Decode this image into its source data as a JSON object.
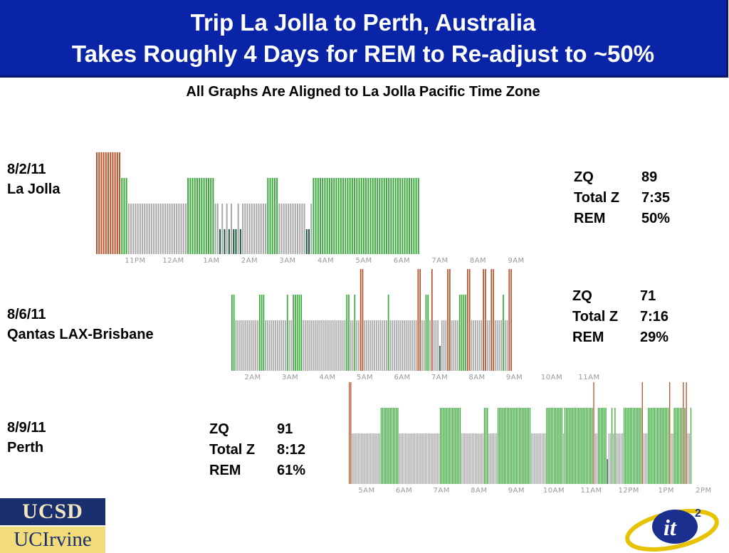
{
  "header": {
    "title_line1": "Trip La Jolla to Perth, Australia",
    "title_line2": "Takes Roughly 4 Days for REM to Re-adjust to ~50%"
  },
  "subtitle": "All Graphs Are Aligned to La Jolla Pacific Time Zone",
  "colors": {
    "wake": "#b5532b",
    "rem": "#3aa83a",
    "light": "#a8a8a8",
    "deep": "#17593a",
    "banner": "#0a24a8"
  },
  "nights": [
    {
      "date": "8/2/11",
      "place": "La Jolla",
      "stats": {
        "zq_label": "ZQ",
        "zq": "89",
        "total_label": "Total Z",
        "total": "7:35",
        "rem_label": "REM",
        "rem": "50%"
      },
      "ticks": [
        "11PM",
        "12AM",
        "1AM",
        "2AM",
        "3AM",
        "4AM",
        "5AM",
        "6AM",
        "7AM",
        "8AM",
        "9AM"
      ],
      "stages": "WWWWWWWWWWWRRRLLLLLLLLLLLLLLLLLLLLLLLLLLRRRRRRRRRRRRLLDLDLDLDDLDLLLLLLLLLLLRRRRRLLLLLLLLLLLLDDLRRRRRRRRRRRRRRRRRRRRRRRRRRRRRRRRRRRRRRRRRRRRRRR"
    },
    {
      "date": "8/6/11",
      "place": "Qantas LAX-Brisbane",
      "stats": {
        "zq_label": "ZQ",
        "zq": "71",
        "total_label": "Total Z",
        "total": "7:16",
        "rem_label": "REM",
        "rem": "29%"
      },
      "ticks": [
        "2AM",
        "3AM",
        "4AM",
        "5AM",
        "6AM",
        "7AM",
        "8AM",
        "9AM",
        "10AM",
        "11AM"
      ],
      "stages": "RRLLLLLLLLLLLLRRRLLLLLLLLLLLRLLRRRRRLLLLLLLLLLLLLLLLLLLLLLRRLLRLLWWLLLLLLLLLLLLRLLLLLLLLLLLLLLWWLLRRLWLLLDLLLWWLLLLRRRRWWLLLLLLWWLLWWLLLLRLLWW"
    },
    {
      "date": "8/9/11",
      "place": "Perth",
      "stats": {
        "zq_label": "ZQ",
        "zq": "91",
        "total_label": "Total Z",
        "total": "8:12",
        "rem_label": "REM",
        "rem": "61%"
      },
      "ticks": [
        "5AM",
        "6AM",
        "7AM",
        "8AM",
        "9AM",
        "10AM",
        "11AM",
        "12PM",
        "1PM",
        "2PM"
      ],
      "stages": "WWLLLLLLLLLLLLLLLLLLLRRRRRRRRRRRRLLLLLLLLLLLLLLLLLLLLLLLLLLLRRRRRRRRRRRRRRLLLLLLLLLLLLLLLRRRLLLLLLRRRRRRRRRRRRRRRRRRRRRRLLLLLLLLLLRRRRRRRRRRRLRRRRRRRRRRRRRRRRRRRWLLRRRRRRDLLRLRLLLLLRRRRRRRRRRRRWLLLRRRRRRRRRRRRRRWLLRRRRRRWRWLLR"
    }
  ]
}
